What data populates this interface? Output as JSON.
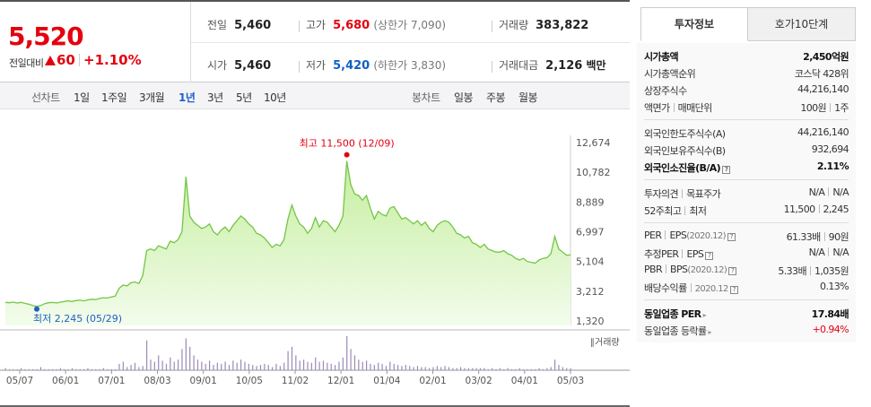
{
  "summary": {
    "price": "5,520",
    "change_label": "전일대비",
    "change_value": "60",
    "change_pct": "+1.10%",
    "prev_close": {
      "label": "전일",
      "value": "5,460"
    },
    "high": {
      "label": "고가",
      "value": "5,680",
      "sub": "(상한가 7,090)"
    },
    "volume": {
      "label": "거래량",
      "value": "383,822"
    },
    "open": {
      "label": "시가",
      "value": "5,460"
    },
    "low": {
      "label": "저가",
      "value": "5,420",
      "sub": "(하한가 3,830)"
    },
    "amount": {
      "label": "거래대금",
      "value": "2,126",
      "unit": "백만"
    }
  },
  "period_bar": {
    "line_label": "선차트",
    "line_options": [
      "1일",
      "1주일",
      "3개월",
      "1년",
      "3년",
      "5년",
      "10년"
    ],
    "active": "1년",
    "candle_label": "봉차트",
    "candle_options": [
      "일봉",
      "주봉",
      "월봉"
    ]
  },
  "chart_data": {
    "type": "area",
    "y_ticks": [
      "12,674",
      "10,782",
      "8,889",
      "6,997",
      "5,104",
      "3,212",
      "1,320"
    ],
    "ylim": [
      1320,
      12674
    ],
    "x_ticks": [
      "05/07",
      "06/01",
      "07/01",
      "08/03",
      "09/01",
      "10/05",
      "11/02",
      "12/01",
      "01/04",
      "02/01",
      "03/02",
      "04/01",
      "05/03"
    ],
    "high_annotation": "최고 11,500 (12/09)",
    "low_annotation": "최저 2,245 (05/29)",
    "volume_label": "거래량",
    "colors": {
      "line": "#74c645",
      "fill": "#d9f5c5",
      "high": "#e5000f",
      "low": "#1f5fc9",
      "volume": "#9b8ab8"
    },
    "price_series": [
      2500,
      2480,
      2520,
      2460,
      2500,
      2440,
      2380,
      2300,
      2245,
      2300,
      2420,
      2480,
      2500,
      2460,
      2520,
      2560,
      2600,
      2560,
      2620,
      2640,
      2600,
      2660,
      2700,
      2680,
      2750,
      2800,
      2780,
      2850,
      2900,
      3400,
      3600,
      3550,
      3750,
      3800,
      3700,
      4200,
      5800,
      5900,
      5800,
      6100,
      6000,
      5900,
      6400,
      6300,
      6500,
      7000,
      10500,
      8000,
      7600,
      7400,
      7200,
      7300,
      7500,
      7000,
      6800,
      7100,
      7300,
      7000,
      7400,
      7700,
      8000,
      7800,
      7500,
      7300,
      6900,
      6800,
      6600,
      6300,
      6000,
      6200,
      6100,
      6500,
      7800,
      8700,
      8000,
      7500,
      7300,
      6900,
      7200,
      7900,
      7300,
      7700,
      7600,
      7300,
      7000,
      7400,
      8000,
      11500,
      10000,
      9400,
      9300,
      9000,
      9300,
      8500,
      7800,
      8300,
      8100,
      8000,
      8500,
      8600,
      8200,
      7800,
      7900,
      7700,
      7500,
      7700,
      7400,
      7600,
      7200,
      7000,
      7400,
      7600,
      7700,
      7600,
      7300,
      6900,
      6800,
      6600,
      6700,
      6300,
      6200,
      6000,
      6200,
      5900,
      5800,
      5700,
      5700,
      5800,
      5600,
      5500,
      5300,
      5200,
      5300,
      5100,
      5050,
      5000,
      5200,
      5300,
      5350,
      5600,
      6700,
      5900,
      5700,
      5500,
      5520
    ],
    "volume_series": [
      2,
      1,
      1,
      1,
      2,
      1,
      1,
      1,
      1,
      3,
      1,
      1,
      1,
      1,
      2,
      1,
      1,
      2,
      1,
      1,
      1,
      2,
      1,
      1,
      1,
      2,
      1,
      1,
      1,
      6,
      8,
      3,
      5,
      7,
      3,
      4,
      28,
      10,
      8,
      14,
      9,
      6,
      12,
      8,
      10,
      20,
      30,
      22,
      14,
      10,
      8,
      6,
      9,
      5,
      7,
      6,
      8,
      5,
      9,
      7,
      10,
      8,
      6,
      5,
      4,
      5,
      6,
      5,
      3,
      6,
      4,
      7,
      18,
      22,
      14,
      9,
      10,
      8,
      7,
      12,
      8,
      9,
      7,
      6,
      5,
      8,
      12,
      32,
      20,
      14,
      10,
      8,
      9,
      6,
      5,
      7,
      6,
      4,
      8,
      6,
      5,
      4,
      5,
      4,
      3,
      4,
      3,
      3,
      2,
      3,
      4,
      3,
      4,
      3,
      2,
      2,
      3,
      2,
      2,
      2,
      2,
      2,
      2,
      1,
      2,
      1,
      2,
      1,
      2,
      1,
      1,
      2,
      1,
      1,
      1,
      1,
      2,
      1,
      2,
      3,
      10,
      5,
      3,
      2,
      2
    ]
  },
  "tabs": {
    "invest": "투자정보",
    "hoga": "호가10단계"
  },
  "info": {
    "market_cap": {
      "label": "시가총액",
      "value": "2,450억원"
    },
    "cap_rank": {
      "label": "시가총액순위",
      "value": "코스닥 428위"
    },
    "listed_shares": {
      "label": "상장주식수",
      "value": "44,216,140"
    },
    "face_value": {
      "label": "액면가",
      "label2": "매매단위",
      "value": "100원",
      "value2": "1주"
    },
    "foreign_limit": {
      "label": "외국인한도주식수(A)",
      "value": "44,216,140"
    },
    "foreign_hold": {
      "label": "외국인보유주식수(B)",
      "value": "932,694"
    },
    "foreign_ratio": {
      "label": "외국인소진율(B/A)",
      "value": "2.11%"
    },
    "opinion": {
      "label": "투자의견",
      "label2": "목표주가",
      "value": "N/A",
      "value2": "N/A"
    },
    "week52": {
      "label": "52주최고",
      "label2": "최저",
      "value": "11,500",
      "value2": "2,245"
    },
    "per": {
      "label": "PER",
      "label2": "EPS",
      "tag": "(2020.12)",
      "value": "61.33배",
      "value2": "90원"
    },
    "est_per": {
      "label": "추정PER",
      "label2": "EPS",
      "value": "N/A",
      "value2": "N/A"
    },
    "pbr": {
      "label": "PBR",
      "label2": "BPS",
      "tag": "(2020.12)",
      "value": "5.33배",
      "value2": "1,035원"
    },
    "dividend": {
      "label": "배당수익률",
      "tag": "2020.12",
      "value": "0.13%"
    },
    "sector_per": {
      "label": "동일업종 PER",
      "value": "17.84배"
    },
    "sector_rate": {
      "label": "동일업종 등락률",
      "value": "+0.94%"
    }
  }
}
